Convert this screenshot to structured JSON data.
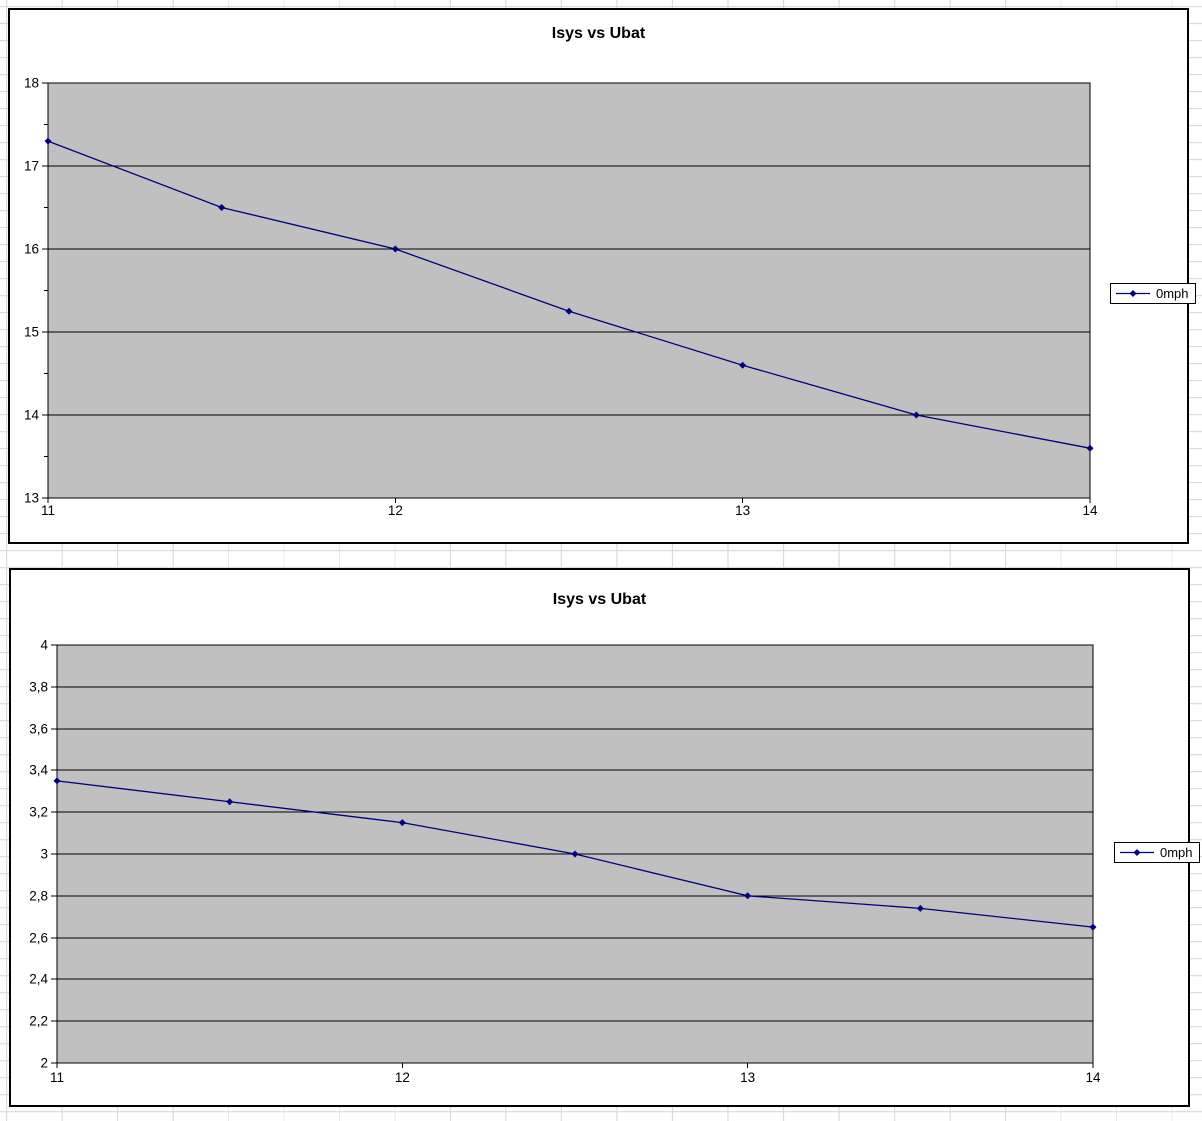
{
  "chart_data": [
    {
      "type": "line",
      "title": "Isys vs Ubat",
      "legend_label": "0mph",
      "legend_position": "right",
      "plot_bg": "#C0C0C0",
      "line_color": "#000080",
      "marker": "diamond",
      "grid": "horizontal-major",
      "xlim": [
        11,
        14
      ],
      "ylim": [
        13,
        18
      ],
      "x_ticks": [
        {
          "value": 11,
          "label": "11"
        },
        {
          "value": 12,
          "label": "12"
        },
        {
          "value": 13,
          "label": "13"
        },
        {
          "value": 14,
          "label": "14"
        }
      ],
      "y_ticks": [
        {
          "value": 18,
          "label": "18"
        },
        {
          "value": 17,
          "label": "17"
        },
        {
          "value": 16,
          "label": "16"
        },
        {
          "value": 15,
          "label": "15"
        },
        {
          "value": 14,
          "label": "14"
        },
        {
          "value": 13,
          "label": "13"
        }
      ],
      "y_minor_ticks": [
        17.5,
        16.5,
        15.5,
        14.5,
        13.5
      ],
      "series": [
        {
          "name": "0mph",
          "points": [
            [
              11,
              17.3
            ],
            [
              11.5,
              16.5
            ],
            [
              12,
              16.0
            ],
            [
              12.5,
              15.25
            ],
            [
              13,
              14.6
            ],
            [
              13.5,
              14.0
            ],
            [
              14,
              13.6
            ]
          ]
        }
      ]
    },
    {
      "type": "line",
      "title": "Isys vs Ubat",
      "legend_label": "0mph",
      "legend_position": "right",
      "plot_bg": "#C0C0C0",
      "line_color": "#000080",
      "marker": "diamond",
      "grid": "horizontal-major",
      "xlim": [
        11,
        14
      ],
      "ylim": [
        2,
        4
      ],
      "x_ticks": [
        {
          "value": 11,
          "label": "11"
        },
        {
          "value": 12,
          "label": "12"
        },
        {
          "value": 13,
          "label": "13"
        },
        {
          "value": 14,
          "label": "14"
        }
      ],
      "y_ticks": [
        {
          "value": 4,
          "label": "4"
        },
        {
          "value": 3.8,
          "label": "3,8"
        },
        {
          "value": 3.6,
          "label": "3,6"
        },
        {
          "value": 3.4,
          "label": "3,4"
        },
        {
          "value": 3.2,
          "label": "3,2"
        },
        {
          "value": 3,
          "label": "3"
        },
        {
          "value": 2.8,
          "label": "2,8"
        },
        {
          "value": 2.6,
          "label": "2,6"
        },
        {
          "value": 2.4,
          "label": "2,4"
        },
        {
          "value": 2.2,
          "label": "2,2"
        },
        {
          "value": 2,
          "label": "2"
        }
      ],
      "y_minor_ticks": [],
      "series": [
        {
          "name": "0mph",
          "points": [
            [
              11,
              3.35
            ],
            [
              11.5,
              3.25
            ],
            [
              12,
              3.15
            ],
            [
              12.5,
              3.0
            ],
            [
              13,
              2.8
            ],
            [
              13.5,
              2.74
            ],
            [
              14,
              2.65
            ]
          ]
        }
      ]
    }
  ]
}
